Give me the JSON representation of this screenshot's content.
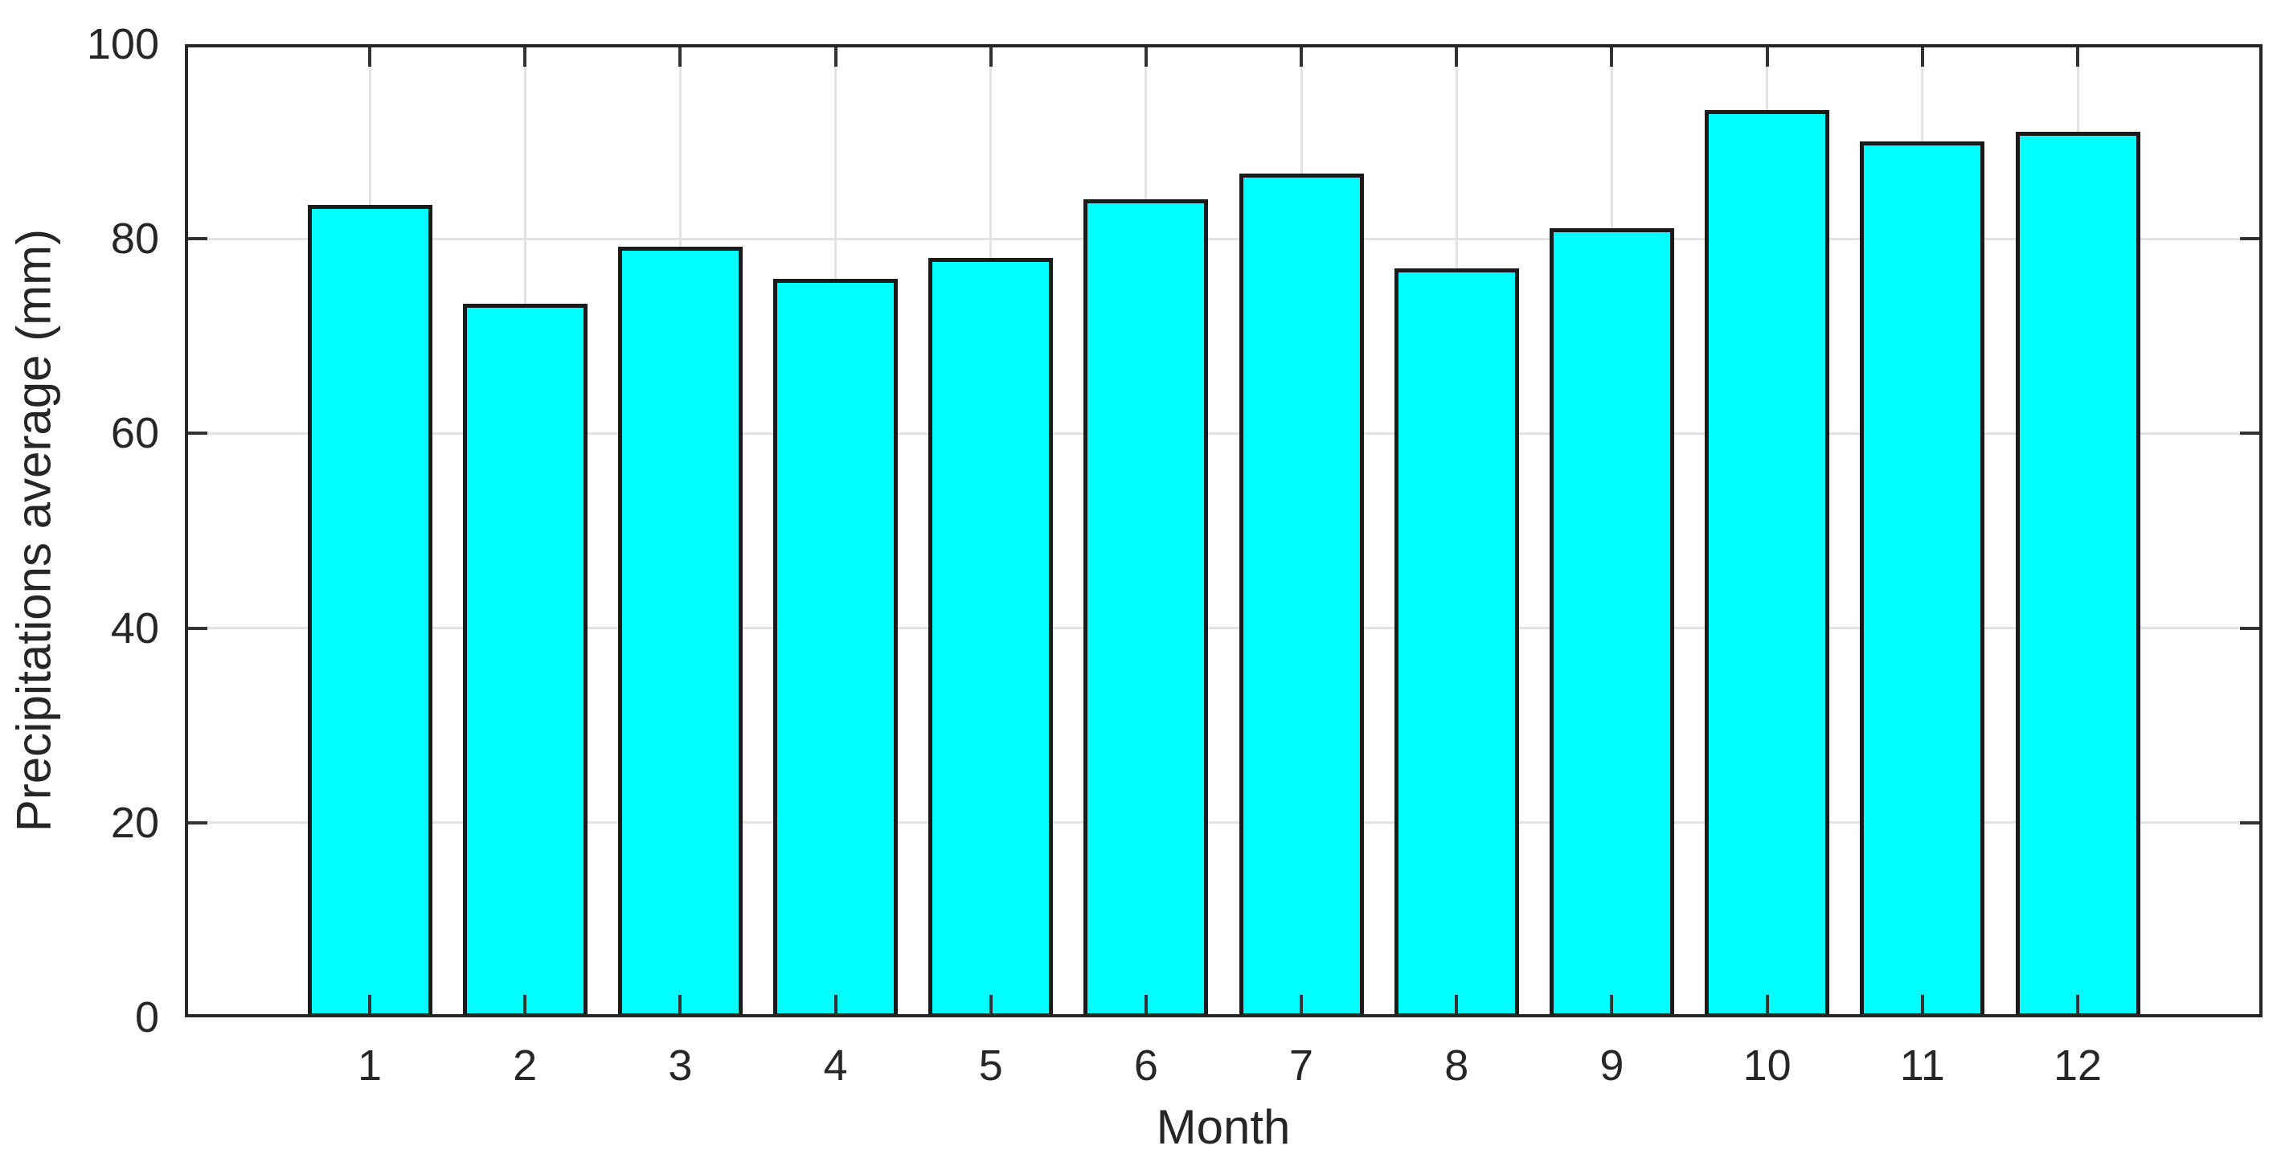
{
  "chart_data": {
    "type": "bar",
    "title": "",
    "xlabel": "Month",
    "ylabel": "Precipitations average (mm)",
    "categories": [
      "1",
      "2",
      "3",
      "4",
      "5",
      "6",
      "7",
      "8",
      "9",
      "10",
      "11",
      "12"
    ],
    "values": [
      83.5,
      73.3,
      79.2,
      75.9,
      78.0,
      84.1,
      86.7,
      77.0,
      81.1,
      93.2,
      90.0,
      91.0
    ],
    "ylim": [
      0,
      100
    ],
    "yticks": [
      0,
      20,
      40,
      60,
      80,
      100
    ],
    "grid": true,
    "legend_position": "none",
    "bar_width_fraction": 0.8,
    "colors": {
      "bar_fill": "#00ffff",
      "bar_edge": "#1a1a1a",
      "grid": "#e3e3e3",
      "axis_box": "#262626",
      "tick": "#333333",
      "text": "#262626",
      "background": "#ffffff"
    }
  }
}
